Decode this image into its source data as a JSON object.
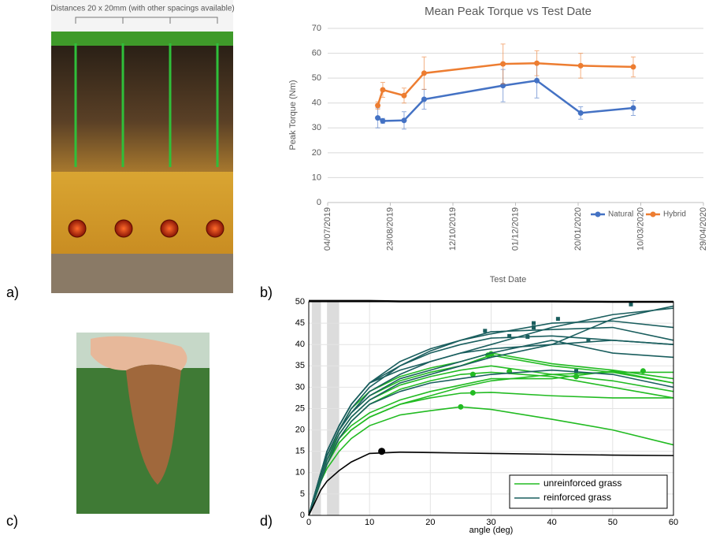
{
  "panel_labels": [
    "a)",
    "b)",
    "c)",
    "d)"
  ],
  "panel_a": {
    "caption": "Distances 20 x 20mm (with other spacings available)"
  },
  "chart_data": [
    {
      "type": "line",
      "title": "Mean Peak Torque vs Test Date",
      "x_label": "Test Date",
      "y_label": "Peak Torque (Nm)",
      "x": [
        "13/08/2019",
        "17/08/2019",
        "03/09/2019",
        "19/09/2019",
        "21/11/2019",
        "18/12/2019",
        "22/01/2020",
        "04/03/2020"
      ],
      "series": [
        {
          "name": "Natural",
          "color": "#4472c4",
          "values": [
            34,
            32.8,
            33,
            41.5,
            47,
            49,
            36,
            38
          ],
          "errors": [
            4,
            1,
            3.5,
            4,
            6.5,
            7,
            2.5,
            3
          ]
        },
        {
          "name": "Hybrid",
          "color": "#ed7d31",
          "values": [
            39,
            45.3,
            43,
            52,
            55.7,
            56,
            55,
            54.5
          ],
          "errors": [
            1.5,
            3,
            3,
            6.5,
            8,
            5,
            5,
            4
          ]
        }
      ],
      "xlim": [
        "04/07/2019",
        "29/04/2020"
      ],
      "xticks": [
        "04/07/2019",
        "23/08/2019",
        "12/10/2019",
        "01/12/2019",
        "20/01/2020",
        "10/03/2020",
        "29/04/2020"
      ],
      "ylim": [
        0,
        70
      ],
      "yticks": [
        0,
        10,
        20,
        30,
        40,
        50,
        60,
        70
      ],
      "grid": true,
      "legend": "bottom-right"
    },
    {
      "type": "line",
      "x_label": "angle (deg)",
      "x": [
        0,
        1,
        2,
        3,
        5,
        7,
        10,
        15,
        20,
        25,
        30,
        40,
        50,
        60
      ],
      "shaded": [
        [
          0.5,
          2
        ],
        [
          3,
          5
        ]
      ],
      "series": [
        {
          "name": "unreinforced grass",
          "color": "#22bb22",
          "lines": [
            [
              0,
              4,
              8,
              11,
              15,
              18,
              21,
              23.5,
              24.5,
              25.4,
              24.8,
              22.5,
              20,
              16.5
            ],
            [
              0,
              4,
              8,
              12,
              17,
              20,
              23,
              26,
              27.5,
              28.6,
              28.8,
              28,
              27.5,
              27.5
            ],
            [
              0,
              5,
              9,
              13,
              18,
              22,
              26,
              29.5,
              31.5,
              33,
              33.5,
              32.5,
              30,
              27.5
            ],
            [
              0,
              5,
              10,
              14,
              19,
              23,
              27,
              30.5,
              32.5,
              34,
              35,
              33,
              31.5,
              29
            ],
            [
              0,
              5,
              10,
              14,
              20,
              24,
              28,
              31.5,
              33.5,
              35,
              37.5,
              35,
              33.5,
              31
            ],
            [
              0,
              5,
              10,
              14,
              20,
              25,
              29,
              32.5,
              34.5,
              36,
              38,
              35.5,
              34,
              32
            ],
            [
              0,
              4,
              8,
              12,
              17,
              20,
              23,
              26,
              28,
              30,
              31.5,
              33,
              33.5,
              33.5
            ],
            [
              0,
              4,
              9,
              13,
              18,
              21,
              24,
              27,
              29,
              30.5,
              32,
              32,
              33.8,
              31
            ]
          ],
          "peaks": [
            [
              25,
              25.4
            ],
            [
              27,
              28.7
            ],
            [
              27,
              33
            ],
            [
              29.5,
              37.5
            ],
            [
              30,
              37.8
            ],
            [
              33,
              33.7
            ],
            [
              44,
              32.5
            ],
            [
              55,
              33.8
            ]
          ]
        },
        {
          "name": "reinforced grass",
          "color": "#1a5e5e",
          "lines": [
            [
              0,
              5,
              10,
              15,
              21,
              26,
              31,
              36,
              39,
              41,
              43,
              43.5,
              44,
              41
            ],
            [
              0,
              5,
              10,
              15,
              21,
              26,
              31,
              35,
              38,
              40,
              41.5,
              42,
              41,
              40
            ],
            [
              0,
              5,
              10,
              14,
              20,
              25,
              30,
              35,
              38.5,
              41,
              42.5,
              45,
              45.5,
              44
            ],
            [
              0,
              5,
              10,
              14,
              20,
              24,
              29,
              33,
              36,
              38,
              40,
              44,
              47,
              48.5
            ],
            [
              0,
              5,
              9,
              13,
              19,
              23,
              27,
              31,
              33,
              35,
              37,
              40,
              46,
              49
            ],
            [
              0,
              5,
              10,
              15,
              21,
              26,
              31,
              34,
              36,
              38,
              39,
              40,
              41,
              40
            ],
            [
              0,
              4,
              8,
              12,
              18,
              22,
              26,
              29,
              31,
              32,
              33,
              34,
              33,
              30
            ],
            [
              0,
              5,
              10,
              14,
              20,
              24,
              28,
              32,
              34,
              36,
              38,
              41,
              38,
              37
            ]
          ],
          "peaks": [
            [
              29,
              43.2
            ],
            [
              33,
              42
            ],
            [
              37,
              45
            ],
            [
              37,
              44
            ],
            [
              41,
              46
            ],
            [
              36,
              41.8
            ],
            [
              44,
              33.8
            ],
            [
              46,
              41
            ],
            [
              53,
              49.4
            ]
          ]
        },
        {
          "color": "#000000",
          "lines": [
            [
              0,
              3,
              6,
              8,
              10.5,
              12.5,
              14.5,
              14.8,
              14.7,
              14.6,
              14.5,
              14.3,
              14.1,
              14
            ]
          ],
          "peaks": [
            [
              12,
              15
            ]
          ]
        },
        {
          "color": "#000000",
          "lines": [
            [
              50.2,
              50.2,
              50.2,
              50.2,
              50.2,
              50.2,
              50.2,
              50.1,
              50.1,
              50.1,
              50.1,
              50.1,
              50,
              50
            ]
          ],
          "peaks": []
        }
      ],
      "xlim": [
        0,
        60
      ],
      "xticks": [
        0,
        10,
        20,
        30,
        40,
        50,
        60
      ],
      "ylim": [
        0,
        50
      ],
      "yticks": [
        0,
        5,
        10,
        15,
        20,
        25,
        30,
        35,
        40,
        45,
        50
      ],
      "grid": true,
      "legend": "bottom-right"
    }
  ]
}
